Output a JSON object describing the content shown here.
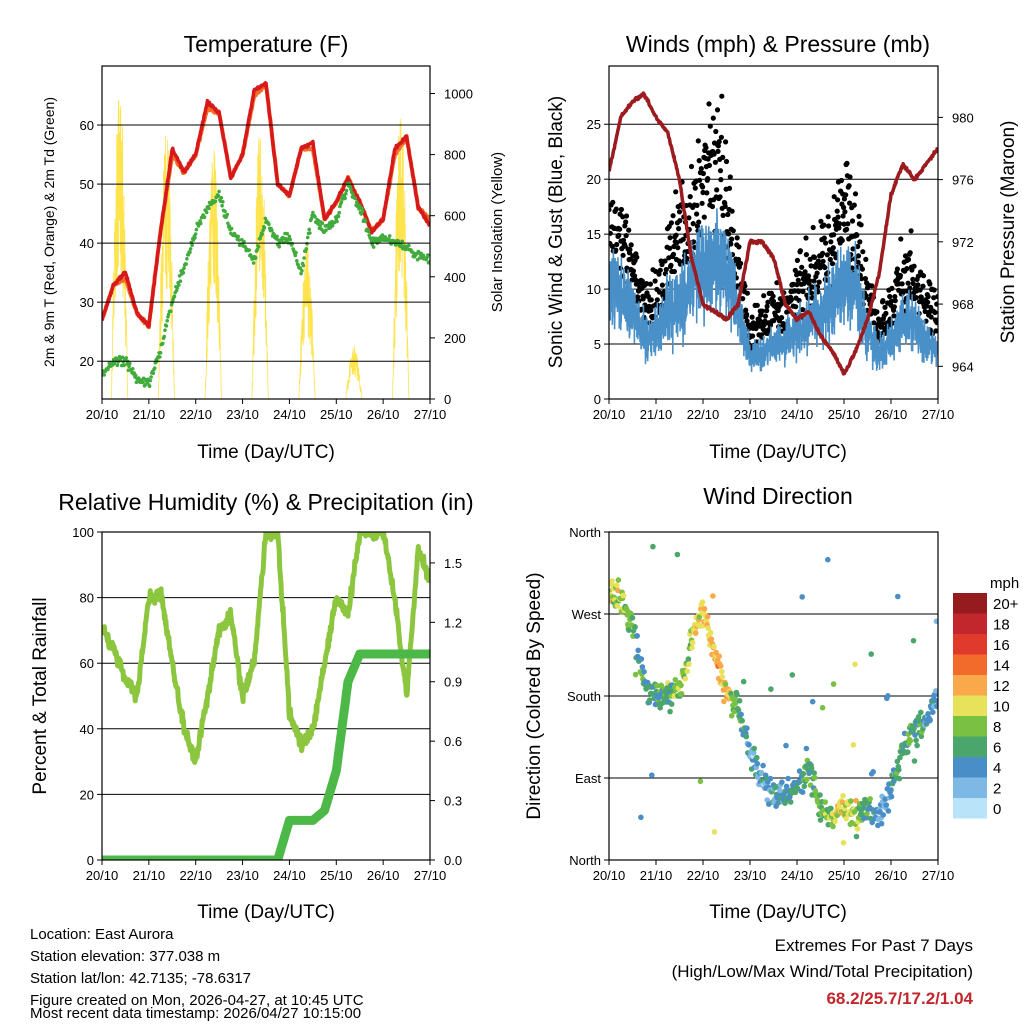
{
  "footer": {
    "location": "Location: East Aurora",
    "elevation": "Station elevation: 377.038 m",
    "latlon": "Station lat/lon: 42.7135; -78.6317",
    "created": "Figure created on Mon, 2026-04-27, at 10:45 UTC",
    "latest": "Most recent data timestamp: 2026/04/27 10:15:00",
    "extremes_title": "Extremes For Past 7 Days",
    "extremes_sub": "(High/Low/Max Wind/Total Precipitation)",
    "extremes_values": "68.2/25.7/17.2/1.04"
  },
  "chart_data": [
    {
      "type": "line",
      "title": "Temperature (F)",
      "xlabel": "Time (Day/UTC)",
      "ylabel": "2m & 9m T (Red, Orange) & 2m Td (Green)",
      "ylabel_right": "Solar Insolation (Yellow)",
      "x_ticks": [
        "20/10",
        "21/10",
        "22/10",
        "23/10",
        "24/10",
        "25/10",
        "26/10",
        "27/10"
      ],
      "y_ticks": [
        "20",
        "30",
        "40",
        "50",
        "60"
      ],
      "y_tick_values": [
        20,
        30,
        40,
        50,
        60
      ],
      "y2_ticks": [
        "0",
        "200",
        "400",
        "600",
        "800",
        "1000"
      ],
      "y2_tick_values": [
        0,
        200,
        400,
        600,
        800,
        1000
      ],
      "ylim": [
        13.6,
        70
      ],
      "y2lim": [
        0,
        1090
      ],
      "x_step_hours": 6,
      "series": [
        {
          "name": "2m T",
          "color": "#d7191c",
          "values": [
            27,
            33,
            35,
            28,
            26,
            42,
            56,
            52,
            55,
            64,
            62,
            51,
            55,
            66,
            67,
            50,
            48,
            56,
            57,
            44,
            47,
            51,
            47,
            42,
            44,
            56,
            58,
            46,
            43
          ]
        },
        {
          "name": "9m T",
          "color": "#f46d24",
          "values": [
            27,
            33,
            34,
            28,
            26,
            42,
            55,
            52,
            55,
            63,
            62,
            51,
            55,
            65,
            67,
            50,
            48,
            56,
            56,
            44,
            47,
            51,
            47,
            42,
            44,
            55,
            58,
            46,
            44
          ]
        },
        {
          "name": "2m Td",
          "color": "#41ab3c",
          "values": [
            18,
            20,
            20,
            17,
            16,
            22,
            30,
            36,
            42,
            46,
            48,
            42,
            40,
            37,
            44,
            40,
            41,
            35,
            45,
            42,
            44,
            50,
            46,
            40,
            41,
            40,
            39,
            38,
            37
          ]
        },
        {
          "name": "Solar Insolation",
          "color": "#ffe34d",
          "daily_peaks": [
            1050,
            900,
            860,
            920,
            520,
            180,
            960
          ]
        }
      ]
    },
    {
      "type": "scatter",
      "title": "Winds (mph) & Pressure (mb)",
      "xlabel": "Time (Day/UTC)",
      "ylabel": "Sonic Wind & Gust (Blue, Black)",
      "ylabel_right": "Station Pressure (Maroon)",
      "x_ticks": [
        "20/10",
        "21/10",
        "22/10",
        "23/10",
        "24/10",
        "25/10",
        "26/10",
        "27/10"
      ],
      "y_ticks": [
        "0",
        "5",
        "10",
        "15",
        "20",
        "25"
      ],
      "y_tick_values": [
        0,
        5,
        10,
        15,
        20,
        25
      ],
      "y2_ticks": [
        "964",
        "968",
        "972",
        "976",
        "980"
      ],
      "y2_tick_values": [
        964,
        968,
        972,
        976,
        980
      ],
      "ylim": [
        0,
        30.3
      ],
      "y2lim": [
        961.9,
        983.3
      ],
      "x_step_hours": 6,
      "series": [
        {
          "name": "Wind",
          "color": "#4a90c8",
          "values": [
            10,
            10,
            8,
            6,
            6,
            8,
            9,
            10,
            12,
            13,
            12,
            8,
            4,
            4,
            5,
            5,
            6,
            7,
            8,
            9,
            11,
            10,
            6,
            4,
            5,
            7,
            7,
            5,
            5
          ]
        },
        {
          "name": "Gust",
          "color": "#000000",
          "values": [
            14,
            15,
            12,
            9,
            9,
            12,
            14,
            16,
            20,
            22,
            18,
            12,
            6,
            7,
            8,
            8,
            10,
            11,
            12,
            14,
            18,
            15,
            9,
            6,
            8,
            11,
            11,
            8,
            8
          ]
        },
        {
          "name": "Pressure",
          "color": "#9b1b1e",
          "values": [
            976.5,
            980,
            981,
            981.5,
            980,
            979,
            976,
            971,
            968,
            967.5,
            967,
            968,
            972,
            972,
            971,
            968,
            967,
            967.5,
            966,
            965,
            963.5,
            965,
            967,
            970,
            975,
            977,
            976,
            977,
            978
          ]
        }
      ]
    },
    {
      "type": "line",
      "title": "Relative Humidity (%) & Precipitation (in)",
      "xlabel": "Time (Day/UTC)",
      "ylabel": "Percent & Total Rainfall",
      "x_ticks": [
        "20/10",
        "21/10",
        "22/10",
        "23/10",
        "24/10",
        "25/10",
        "26/10",
        "27/10"
      ],
      "y_ticks": [
        "0",
        "20",
        "40",
        "60",
        "80",
        "100"
      ],
      "y_tick_values": [
        0,
        20,
        40,
        60,
        80,
        100
      ],
      "y2_ticks": [
        "0.0",
        "0.3",
        "0.6",
        "0.9",
        "1.2",
        "1.5"
      ],
      "y2_tick_values": [
        0,
        0.3,
        0.6,
        0.9,
        1.2,
        1.5
      ],
      "ylim": [
        0,
        100
      ],
      "y2lim": [
        0,
        1.656
      ],
      "x_step_hours": 6,
      "series": [
        {
          "name": "Relative Humidity",
          "color": "#8cc63f",
          "values": [
            70,
            65,
            55,
            50,
            80,
            82,
            60,
            40,
            30,
            50,
            70,
            75,
            50,
            60,
            100,
            100,
            45,
            35,
            40,
            60,
            80,
            75,
            100,
            100,
            100,
            80,
            50,
            95,
            85
          ]
        },
        {
          "name": "Total Precipitation",
          "color": "#4cb847",
          "values": [
            0,
            0,
            0,
            0,
            0,
            0,
            0,
            0,
            0,
            0,
            0,
            0,
            0,
            0,
            0,
            0,
            0.2,
            0.2,
            0.2,
            0.25,
            0.45,
            0.9,
            1.04,
            1.04,
            1.04,
            1.04,
            1.04,
            1.04,
            1.04
          ]
        }
      ]
    },
    {
      "type": "scatter",
      "title": "Wind Direction",
      "xlabel": "Time (Day/UTC)",
      "ylabel": "Direction (Colored By Speed)",
      "x_ticks": [
        "20/10",
        "21/10",
        "22/10",
        "23/10",
        "24/10",
        "25/10",
        "26/10",
        "27/10"
      ],
      "y_ticks": [
        "North",
        "East",
        "South",
        "West",
        "North"
      ],
      "y_tick_values": [
        0,
        90,
        180,
        270,
        360
      ],
      "ylim": [
        0,
        360
      ],
      "x_step_hours": 6,
      "series": [
        {
          "name": "Direction (deg)",
          "values": [
            300,
            285,
            260,
            190,
            180,
            180,
            185,
            240,
            275,
            230,
            180,
            170,
            120,
            90,
            70,
            70,
            80,
            100,
            60,
            50,
            60,
            45,
            60,
            50,
            80,
            120,
            140,
            150,
            180
          ]
        }
      ],
      "legend": {
        "title": "mph",
        "labels": [
          "20+",
          "18",
          "16",
          "14",
          "12",
          "10",
          "8",
          "6",
          "4",
          "2",
          "0"
        ],
        "colors": [
          "#951b1e",
          "#c1272d",
          "#e03a2c",
          "#f26b2a",
          "#f9a84a",
          "#e8e15a",
          "#7ac143",
          "#4aa66a",
          "#4a8ec8",
          "#7db9e4",
          "#b9e3f8"
        ]
      }
    }
  ]
}
